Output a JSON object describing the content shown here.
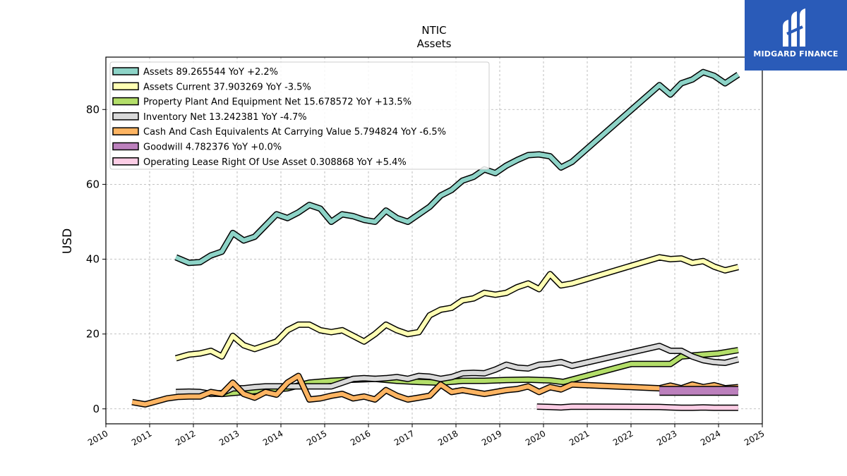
{
  "brand": {
    "name": "MIDGARD FINANCE",
    "logo_icon": "midgard-logo-icon",
    "color": "#2a5bb8"
  },
  "chart_data": {
    "type": "line",
    "title": "NTIC",
    "subtitle": "Assets",
    "xlabel": "",
    "ylabel": "USD",
    "xlim": [
      2010,
      2025
    ],
    "ylim": [
      -4,
      94
    ],
    "x_ticks": [
      2010,
      2011,
      2012,
      2013,
      2014,
      2015,
      2016,
      2017,
      2018,
      2019,
      2020,
      2021,
      2022,
      2023,
      2024,
      2025
    ],
    "y_ticks": [
      0,
      20,
      40,
      60,
      80
    ],
    "grid": true,
    "legend_position": "top-left",
    "series": [
      {
        "name": "Assets",
        "legend": "Assets  89.265544 YoY +2.2%",
        "color": "#8dd3c7",
        "x": [
          2011.6,
          2011.9,
          2012.15,
          2012.4,
          2012.65,
          2012.9,
          2013.15,
          2013.4,
          2013.65,
          2013.9,
          2014.15,
          2014.4,
          2014.65,
          2014.9,
          2015.15,
          2015.4,
          2015.65,
          2015.9,
          2016.15,
          2016.4,
          2016.65,
          2016.9,
          2017.15,
          2017.4,
          2017.65,
          2017.9,
          2018.15,
          2018.4,
          2018.65,
          2018.9,
          2019.15,
          2019.4,
          2019.65,
          2019.9,
          2020.15,
          2020.4,
          2020.65,
          2022.65,
          2022.9,
          2023.15,
          2023.4,
          2023.65,
          2023.9,
          2024.15,
          2024.45
        ],
        "y": [
          40.5,
          39.0,
          39.2,
          41.0,
          42.0,
          47.0,
          45.0,
          46.0,
          49.0,
          52.0,
          51.0,
          52.5,
          54.5,
          53.5,
          50.0,
          52.0,
          51.5,
          50.5,
          50.0,
          53.0,
          51.0,
          50.0,
          52.0,
          54.0,
          57.0,
          58.5,
          61.0,
          62.0,
          64.0,
          63.0,
          65.0,
          66.5,
          67.8,
          68.0,
          67.5,
          64.5,
          66.0,
          86.5,
          84.0,
          87.0,
          88.0,
          90.0,
          89.0,
          87.0,
          89.3
        ]
      },
      {
        "name": "Assets Current",
        "legend": "Assets Current  37.903269 YoY -3.5%",
        "color": "#ffffb3",
        "x": [
          2011.6,
          2011.9,
          2012.15,
          2012.4,
          2012.65,
          2012.9,
          2013.15,
          2013.4,
          2013.65,
          2013.9,
          2014.15,
          2014.4,
          2014.65,
          2014.9,
          2015.15,
          2015.4,
          2015.65,
          2015.9,
          2016.15,
          2016.4,
          2016.65,
          2016.9,
          2017.15,
          2017.4,
          2017.65,
          2017.9,
          2018.15,
          2018.4,
          2018.65,
          2018.9,
          2019.15,
          2019.4,
          2019.65,
          2019.9,
          2020.15,
          2020.4,
          2020.65,
          2022.65,
          2022.9,
          2023.15,
          2023.4,
          2023.65,
          2023.9,
          2024.15,
          2024.45
        ],
        "y": [
          13.5,
          14.5,
          14.8,
          15.5,
          14.0,
          19.5,
          17.0,
          16.0,
          17.0,
          18.0,
          21.0,
          22.5,
          22.5,
          21.0,
          20.5,
          21.0,
          19.5,
          18.0,
          20.0,
          22.5,
          21.0,
          20.0,
          20.5,
          25.0,
          26.5,
          27.0,
          29.0,
          29.5,
          31.0,
          30.5,
          31.0,
          32.5,
          33.5,
          32.0,
          36.0,
          33.0,
          33.5,
          40.5,
          40.0,
          40.2,
          39.0,
          39.5,
          38.0,
          37.0,
          37.9
        ]
      },
      {
        "name": "Property Plant And Equipment Net",
        "legend": "Property Plant And Equipment Net  15.678572 YoY +13.5%",
        "color": "#b3de69",
        "x": [
          2011.6,
          2012.15,
          2012.65,
          2013.15,
          2013.65,
          2014.15,
          2014.65,
          2015.15,
          2015.65,
          2016.15,
          2016.65,
          2017.15,
          2017.65,
          2018.15,
          2018.65,
          2019.15,
          2019.65,
          2020.15,
          2020.45,
          2020.65,
          2022.0,
          2022.65,
          2022.9,
          2023.15,
          2023.65,
          2024.0,
          2024.45
        ],
        "y": [
          4.0,
          4.2,
          4.0,
          4.5,
          5.0,
          5.5,
          7.0,
          7.5,
          7.8,
          8.0,
          7.5,
          7.2,
          7.0,
          7.5,
          7.5,
          7.7,
          7.8,
          7.6,
          7.2,
          7.8,
          12.0,
          12.0,
          12.0,
          14.0,
          14.5,
          14.8,
          15.7
        ]
      },
      {
        "name": "Inventory Net",
        "legend": "Inventory Net  13.242381 YoY -4.7%",
        "color": "#d9d9d9",
        "x": [
          2011.6,
          2011.9,
          2012.15,
          2012.4,
          2012.65,
          2012.9,
          2013.15,
          2013.4,
          2013.65,
          2013.9,
          2014.15,
          2014.4,
          2014.65,
          2014.9,
          2015.15,
          2015.4,
          2015.65,
          2015.9,
          2016.15,
          2016.4,
          2016.65,
          2016.9,
          2017.15,
          2017.4,
          2017.65,
          2017.9,
          2018.15,
          2018.4,
          2018.65,
          2018.9,
          2019.15,
          2019.4,
          2019.65,
          2019.9,
          2020.15,
          2020.4,
          2020.65,
          2022.65,
          2022.9,
          2023.15,
          2023.4,
          2023.65,
          2023.9,
          2024.15,
          2024.45
        ],
        "y": [
          4.5,
          4.6,
          4.5,
          4.0,
          4.2,
          5.5,
          5.5,
          5.8,
          6.0,
          6.0,
          6.0,
          6.0,
          6.0,
          6.0,
          6.0,
          7.0,
          8.0,
          8.2,
          8.0,
          8.2,
          8.5,
          8.0,
          8.8,
          8.6,
          8.0,
          8.5,
          9.5,
          9.6,
          9.5,
          10.5,
          11.8,
          11.0,
          10.8,
          11.8,
          12.0,
          12.5,
          11.5,
          16.8,
          15.5,
          15.5,
          14.0,
          13.0,
          12.5,
          12.3,
          13.2
        ]
      },
      {
        "name": "Cash And Cash Equivalents At Carrying Value",
        "legend": "Cash And Cash Equivalents At Carrying Value  5.794824 YoY -6.5%",
        "color": "#fdb462",
        "x": [
          2010.6,
          2010.9,
          2011.15,
          2011.4,
          2011.65,
          2011.9,
          2012.15,
          2012.4,
          2012.65,
          2012.9,
          2013.15,
          2013.4,
          2013.65,
          2013.9,
          2014.15,
          2014.4,
          2014.65,
          2014.9,
          2015.15,
          2015.4,
          2015.65,
          2015.9,
          2016.15,
          2016.4,
          2016.65,
          2016.9,
          2017.15,
          2017.4,
          2017.65,
          2017.9,
          2018.15,
          2018.4,
          2018.65,
          2018.9,
          2019.15,
          2019.4,
          2019.65,
          2019.9,
          2020.15,
          2020.4,
          2020.65,
          2022.65,
          2022.9,
          2023.15,
          2023.4,
          2023.65,
          2023.9,
          2024.15,
          2024.45
        ],
        "y": [
          1.8,
          1.2,
          2.0,
          2.8,
          3.2,
          3.3,
          3.3,
          4.5,
          4.0,
          7.0,
          4.0,
          3.0,
          4.5,
          3.8,
          7.0,
          8.8,
          2.5,
          2.8,
          3.5,
          4.0,
          2.8,
          3.3,
          2.5,
          5.0,
          3.5,
          2.5,
          3.0,
          3.5,
          6.5,
          4.5,
          5.0,
          4.5,
          4.0,
          4.5,
          5.0,
          5.3,
          6.0,
          4.5,
          5.8,
          5.2,
          6.5,
          5.5,
          6.2,
          5.5,
          6.5,
          5.8,
          6.3,
          5.5,
          5.8
        ]
      },
      {
        "name": "Goodwill",
        "legend": "Goodwill  4.782376 YoY +0.0%",
        "color": "#bc80bd",
        "x": [
          2022.65,
          2024.45
        ],
        "y": [
          4.8,
          4.8
        ]
      },
      {
        "name": "Operating Lease Right Of Use Asset",
        "legend": "Operating Lease Right Of Use Asset  0.308868 YoY +5.4%",
        "color": "#fccde5",
        "x": [
          2019.85,
          2020.15,
          2020.4,
          2020.65,
          2022.65,
          2022.9,
          2023.15,
          2023.4,
          2023.65,
          2023.9,
          2024.15,
          2024.45
        ],
        "y": [
          0.6,
          0.5,
          0.4,
          0.6,
          0.5,
          0.4,
          0.3,
          0.3,
          0.4,
          0.3,
          0.3,
          0.3
        ]
      }
    ]
  }
}
